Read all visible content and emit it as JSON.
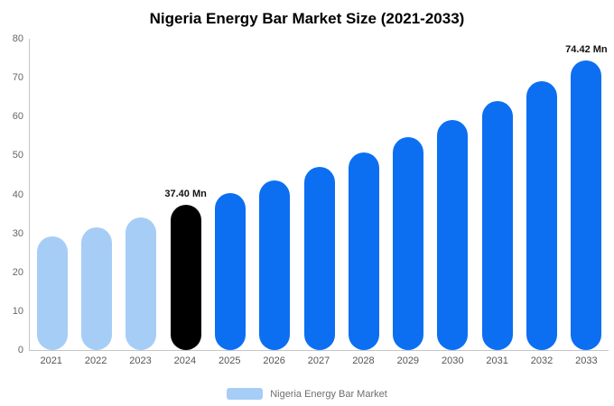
{
  "chart_data": {
    "type": "bar",
    "title": "Nigeria Energy Bar Market Size (2021-2033)",
    "categories": [
      "2021",
      "2022",
      "2023",
      "2024",
      "2025",
      "2026",
      "2027",
      "2028",
      "2029",
      "2030",
      "2031",
      "2032",
      "2033"
    ],
    "values": [
      29.2,
      31.6,
      34.1,
      37.4,
      40.4,
      43.6,
      47.0,
      50.8,
      54.8,
      59.2,
      63.9,
      69.0,
      74.42
    ],
    "point_labels": [
      "",
      "",
      "",
      "37.40 Mn",
      "",
      "",
      "",
      "",
      "",
      "",
      "",
      "",
      "74.42 Mn"
    ],
    "bar_colors": [
      "light",
      "light",
      "light",
      "highlight",
      "primary",
      "primary",
      "primary",
      "primary",
      "primary",
      "primary",
      "primary",
      "primary",
      "primary"
    ],
    "colors": {
      "light": "#a6cdf6",
      "primary": "#0c6ff2",
      "highlight": "#000000"
    },
    "ylim": [
      0,
      80
    ],
    "yticks": [
      0,
      10,
      20,
      30,
      40,
      50,
      60,
      70,
      80
    ],
    "xlabel": "",
    "ylabel": "",
    "grid": false,
    "legend_position": "bottom",
    "legend": [
      {
        "label": "Nigeria Energy Bar Market",
        "color": "#a6cdf6"
      }
    ],
    "unit": "Mn"
  }
}
